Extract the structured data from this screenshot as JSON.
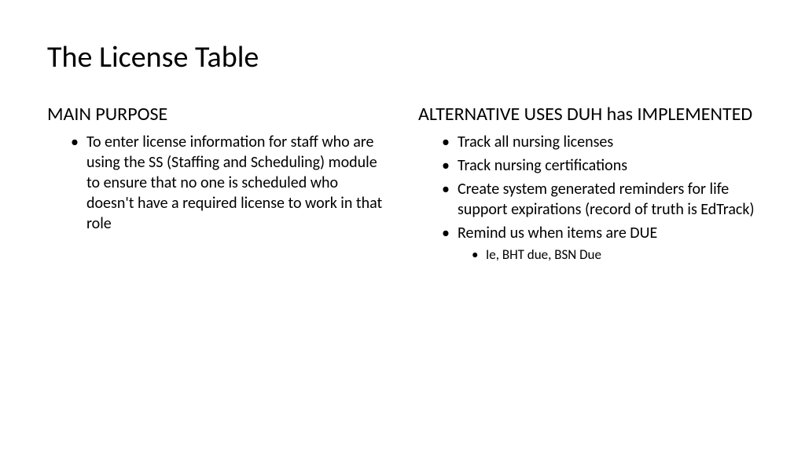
{
  "title": "The License Table",
  "left": {
    "heading": "MAIN PURPOSE",
    "items": [
      "To enter license information for staff who are using the SS (Staffing and Scheduling) module to ensure that no one is scheduled who doesn't have a required license to work in that role"
    ]
  },
  "right": {
    "heading": "ALTERNATIVE USES DUH has IMPLEMENTED",
    "items": [
      {
        "text": "Track all nursing licenses"
      },
      {
        "text": "Track nursing certifications"
      },
      {
        "text": "Create system generated reminders for life support expirations  (record of truth is EdTrack)"
      },
      {
        "text": "Remind us when items are DUE",
        "sub": [
          "Ie, BHT due, BSN Due"
        ]
      }
    ]
  },
  "style": {
    "background": "#ffffff",
    "text_color": "#000000",
    "title_fontsize": 38,
    "heading_fontsize": 24,
    "body_fontsize": 20,
    "sub_fontsize": 17
  }
}
